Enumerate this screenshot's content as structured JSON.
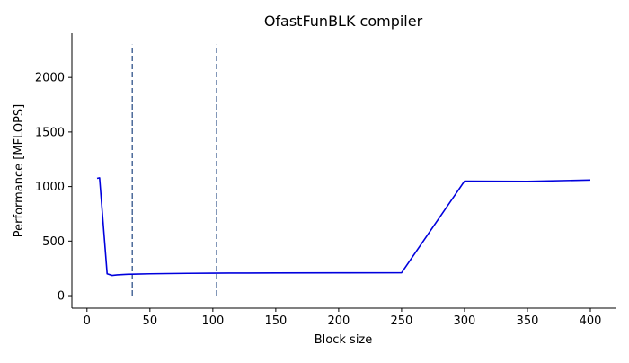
{
  "chart_data": {
    "type": "line",
    "title": "OfastFunBLK compiler",
    "xlabel": "Block size",
    "ylabel": "Performance [MFLOPS]",
    "xlim": [
      -12,
      420
    ],
    "ylim": [
      -115,
      2405
    ],
    "xticks": [
      0,
      50,
      100,
      150,
      200,
      250,
      300,
      350,
      400
    ],
    "yticks": [
      0,
      500,
      1000,
      1500,
      2000
    ],
    "grid": false,
    "legend": "none",
    "series": [
      {
        "x": [
          8,
          10,
          16,
          20,
          24,
          32,
          40,
          50,
          64,
          80,
          100,
          128,
          150,
          200,
          250,
          300,
          350,
          400
        ],
        "y": [
          1075,
          1080,
          200,
          185,
          190,
          195,
          197,
          200,
          202,
          204,
          206,
          207,
          208,
          209,
          210,
          1050,
          1048,
          1060
        ],
        "color": "#0000dd"
      }
    ],
    "vlines": [
      {
        "x": 36,
        "ymin": 0,
        "ymax": 2300,
        "color": "#4c6a9a",
        "style": "dashed"
      },
      {
        "x": 103,
        "ymin": 0,
        "ymax": 2300,
        "color": "#4c6a9a",
        "style": "dashed"
      }
    ]
  }
}
